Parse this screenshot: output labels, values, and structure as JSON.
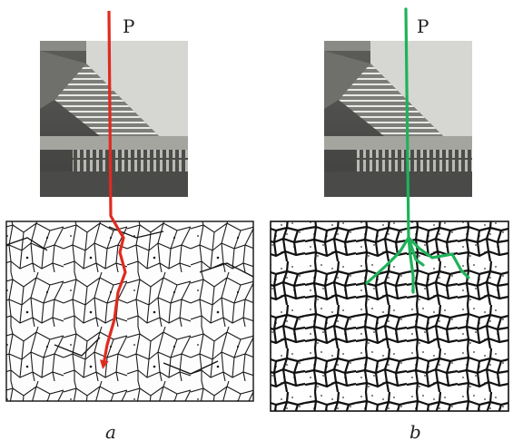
{
  "panels": [
    {
      "id": "a",
      "label": "a",
      "arrow_label": "P",
      "arrow_color": "#e02a1f",
      "micro_style": "thin-boundary-grains"
    },
    {
      "id": "b",
      "label": "b",
      "arrow_label": "P",
      "arrow_color": "#1fb25a",
      "micro_style": "thick-boundary-dotted-grains"
    }
  ],
  "photo_description_icon": "metal-fracture-photo",
  "colors": {
    "photo_bg": "#8b8b8b",
    "photo_light": "#d4d4d0",
    "grain_boundary": "#1a1a1a"
  }
}
